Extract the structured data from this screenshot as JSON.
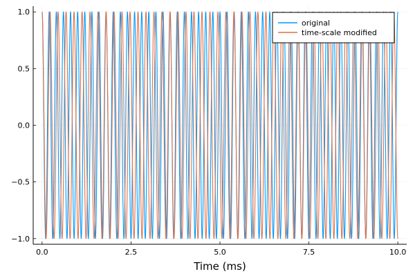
{
  "chart_data": {
    "type": "line",
    "title": "",
    "xlabel": "Time (ms)",
    "ylabel": "",
    "xlim": [
      -0.25,
      10.25
    ],
    "ylim": [
      -1.05,
      1.05
    ],
    "x_ticks": [
      0,
      2.5,
      5,
      7.5,
      10
    ],
    "x_tick_labels": [
      "0.0",
      "2.5",
      "5.0",
      "7.5",
      "10.0"
    ],
    "y_ticks": [
      -1,
      -0.5,
      0,
      0.5,
      1
    ],
    "y_tick_labels": [
      "−1.0",
      "−0.5",
      "0.0",
      "0.5",
      "1.0"
    ],
    "grid": true,
    "legend_position": "top-right",
    "series": [
      {
        "name": "original",
        "color": "#009AFA",
        "function": "cos",
        "frequency_khz": 5.0,
        "x_start": 0,
        "x_end": 10
      },
      {
        "name": "time-scale modified",
        "color": "#E26F46",
        "function": "cos",
        "frequency_khz": 4.45,
        "x_start": 0,
        "x_end": 10
      }
    ]
  }
}
